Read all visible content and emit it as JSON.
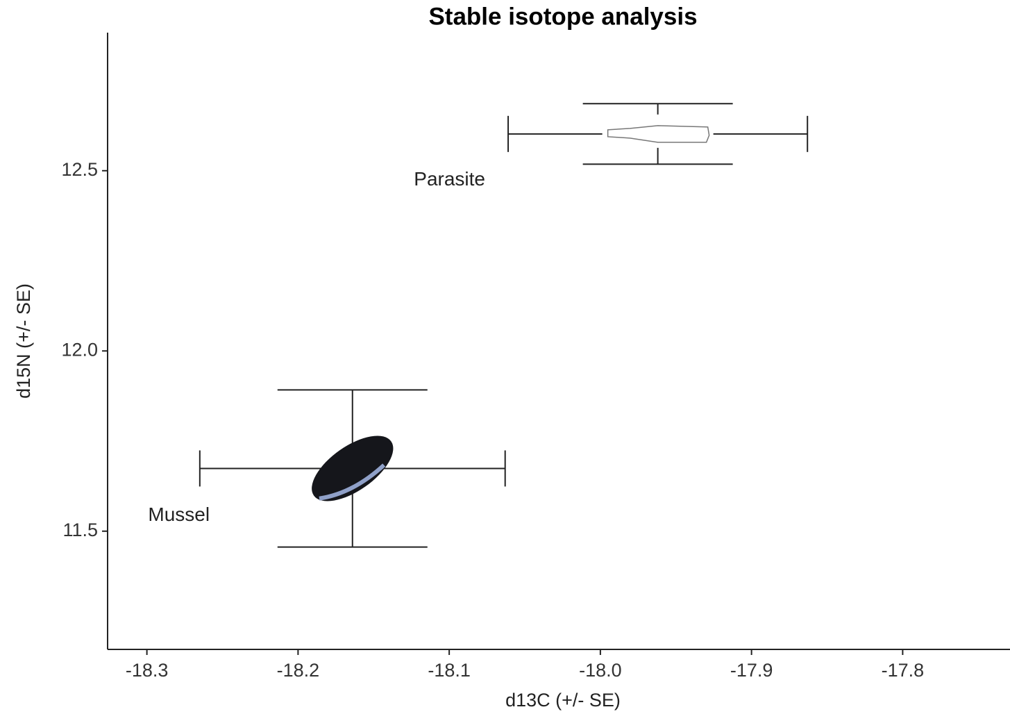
{
  "chart_data": {
    "type": "scatter",
    "title": "Stable isotope analysis",
    "x_label": "d13C (+/- SE)",
    "y_label": "d15N (+/- SE)",
    "points": [
      {
        "name": "Mussel",
        "x": -18.164,
        "y": 11.674,
        "xerr": 0.101,
        "yerr": 0.218
      },
      {
        "name": "Parasite",
        "x": -17.962,
        "y": 12.602,
        "xerr": 0.099,
        "yerr": 0.084
      }
    ],
    "xlim": [
      -18.326,
      -17.729
    ],
    "ylim": [
      11.172,
      12.883
    ],
    "xticks": [
      {
        "value": -18.3,
        "label": "-18.3"
      },
      {
        "value": -18.2,
        "label": "-18.2"
      },
      {
        "value": -18.1,
        "label": "-18.1"
      },
      {
        "value": -18.0,
        "label": "-18.0"
      },
      {
        "value": -17.9,
        "label": "-17.9"
      },
      {
        "value": -17.8,
        "label": "-17.8"
      }
    ],
    "yticks": [
      {
        "value": 11.5,
        "label": "11.5"
      },
      {
        "value": 12.0,
        "label": "12.0"
      },
      {
        "value": 12.5,
        "label": "12.5"
      }
    ],
    "grid": false
  }
}
